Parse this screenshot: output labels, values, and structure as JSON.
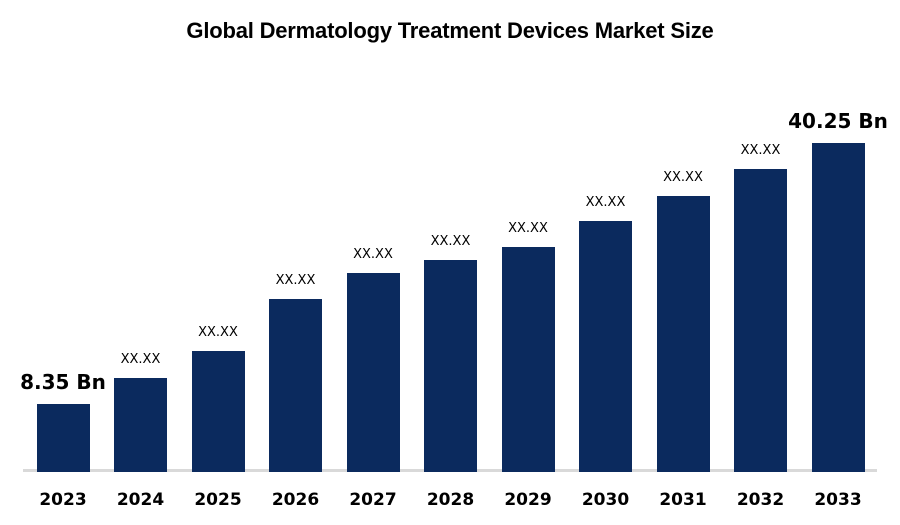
{
  "title": "Global Dermatology Treatment Devices Market Size",
  "colors": {
    "bar": "#0b2a5e",
    "axis_line": "#d9d9d9",
    "text": "#000000",
    "background": "#ffffff"
  },
  "chart_data": {
    "type": "bar",
    "title": "Global Dermatology Treatment Devices Market Size",
    "categories": [
      "2023",
      "2024",
      "2025",
      "2026",
      "2027",
      "2028",
      "2029",
      "2030",
      "2031",
      "2032",
      "2033"
    ],
    "value_labels": [
      "8.35 Bn",
      "XX.XX",
      "XX.XX",
      "XX.XX",
      "XX.XX",
      "XX.XX",
      "XX.XX",
      "XX.XX",
      "XX.XX",
      "XX.XX",
      "40.25 Bn"
    ],
    "values": [
      8.35,
      null,
      null,
      null,
      null,
      null,
      null,
      null,
      null,
      null,
      40.25
    ],
    "estimated_values": [
      8.35,
      11.5,
      14.8,
      21.2,
      24.4,
      26.0,
      27.5,
      30.7,
      33.8,
      37.1,
      40.25
    ],
    "unit": "Bn",
    "xlabel": "",
    "ylabel": "",
    "ylim": [
      0,
      44
    ],
    "grid": false,
    "legend": false,
    "axes_shown": [
      "x-baseline-only"
    ]
  }
}
